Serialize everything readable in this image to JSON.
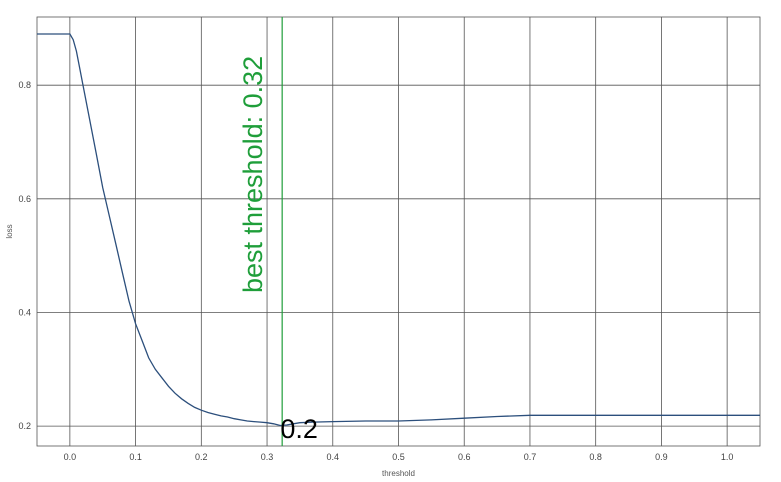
{
  "chart_data": {
    "type": "line",
    "title": "",
    "xlabel": "threshold",
    "ylabel": "loss",
    "xlim": [
      -0.05,
      1.05
    ],
    "ylim": [
      0.165,
      0.92
    ],
    "x_ticks": [
      "0.0",
      "0.1",
      "0.2",
      "0.3",
      "0.4",
      "0.5",
      "0.6",
      "0.7",
      "0.8",
      "0.9",
      "1.0"
    ],
    "y_ticks": [
      "0.2",
      "0.4",
      "0.6",
      "0.8"
    ],
    "grid": true,
    "series": [
      {
        "color": "#2c4f7c",
        "x": [
          -0.05,
          0.0,
          0.005,
          0.01,
          0.015,
          0.02,
          0.03,
          0.04,
          0.05,
          0.06,
          0.07,
          0.08,
          0.09,
          0.1,
          0.11,
          0.12,
          0.13,
          0.14,
          0.15,
          0.16,
          0.17,
          0.18,
          0.19,
          0.2,
          0.21,
          0.22,
          0.23,
          0.24,
          0.25,
          0.26,
          0.27,
          0.28,
          0.29,
          0.3,
          0.31,
          0.32,
          0.33,
          0.34,
          0.35,
          0.37,
          0.4,
          0.45,
          0.5,
          0.55,
          0.6,
          0.65,
          0.7,
          0.75,
          0.8,
          0.85,
          0.9,
          0.95,
          1.0,
          1.05
        ],
        "y": [
          0.89,
          0.89,
          0.88,
          0.86,
          0.83,
          0.8,
          0.74,
          0.68,
          0.62,
          0.57,
          0.52,
          0.47,
          0.42,
          0.38,
          0.35,
          0.32,
          0.3,
          0.285,
          0.27,
          0.258,
          0.248,
          0.24,
          0.233,
          0.228,
          0.224,
          0.221,
          0.218,
          0.216,
          0.213,
          0.211,
          0.209,
          0.208,
          0.207,
          0.206,
          0.204,
          0.201,
          0.202,
          0.204,
          0.206,
          0.207,
          0.208,
          0.209,
          0.209,
          0.211,
          0.214,
          0.217,
          0.219,
          0.219,
          0.219,
          0.219,
          0.219,
          0.219,
          0.219,
          0.219
        ]
      }
    ],
    "annotations": {
      "vline": {
        "x": 0.323,
        "color": "#1f9e3a",
        "text": "best threshold: 0.32"
      },
      "min_label": {
        "x": 0.34,
        "y": 0.2,
        "text": "0.2"
      }
    }
  }
}
